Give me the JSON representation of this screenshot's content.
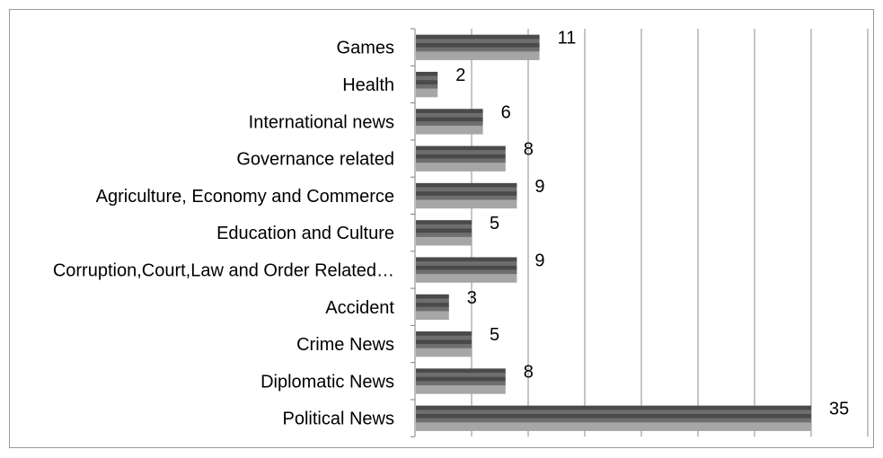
{
  "chart_data": {
    "type": "bar",
    "orientation": "horizontal",
    "categories": [
      "Games",
      "Health",
      "International news",
      "Governance related",
      "Agriculture, Economy and Commerce",
      "Education and Culture",
      "Corruption,Court,Law and Order Related…",
      "Accident",
      "Crime News",
      "Diplomatic News",
      "Political News"
    ],
    "values": [
      11,
      2,
      6,
      8,
      9,
      5,
      9,
      3,
      5,
      8,
      35
    ],
    "xlim": [
      0,
      40
    ],
    "grid": true,
    "legend": "none",
    "bar_colors": {
      "dark": "#4a4a4a",
      "mid": "#6e6e6e",
      "light": "#a6a6a6",
      "gridline": "#8c8c8c",
      "axis": "#7f7f7f",
      "frame": "#9a9a9a",
      "text": "#000000"
    }
  }
}
